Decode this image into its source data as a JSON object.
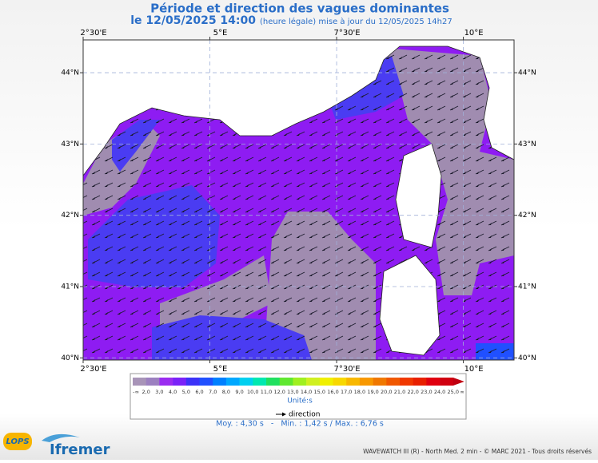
{
  "header": {
    "title": "Période et direction des vagues dominantes",
    "date": "le 12/05/2025 14:00",
    "update": "(heure légale) mise à jour du 12/05/2025 14h27"
  },
  "map": {
    "lon_range": [
      2.5,
      11.0
    ],
    "lat_range": [
      39.97,
      44.46
    ],
    "lon_ticks": [
      {
        "value": 2.5,
        "label": "2°30'E"
      },
      {
        "value": 5,
        "label": "5°E"
      },
      {
        "value": 7.5,
        "label": "7°30'E"
      },
      {
        "value": 10,
        "label": "10°E"
      }
    ],
    "lat_ticks": [
      {
        "value": 40,
        "label": "40°N"
      },
      {
        "value": 41,
        "label": "41°N"
      },
      {
        "value": 42,
        "label": "42°N"
      },
      {
        "value": 43,
        "label": "43°N"
      },
      {
        "value": 44,
        "label": "44°N"
      }
    ]
  },
  "legend": {
    "colors": [
      "#a894b8",
      "#9c80c0",
      "#9a2cf0",
      "#7a22f8",
      "#3c32f8",
      "#2050ff",
      "#0080ff",
      "#00a8ff",
      "#00d0f0",
      "#00e8b0",
      "#20e060",
      "#60e830",
      "#a0f020",
      "#d0f020",
      "#f0f000",
      "#f8d800",
      "#f8b800",
      "#f89800",
      "#f07800",
      "#f05800",
      "#f03800",
      "#e82000",
      "#e00010",
      "#d00010",
      "#c00010"
    ],
    "labels": [
      "-∞",
      "2,0",
      "3,0",
      "4,0",
      "5,0",
      "6,0",
      "7,0",
      "8,0",
      "9,0",
      "10,0",
      "11,0",
      "12,0",
      "13,0",
      "14,0",
      "15,0",
      "16,0",
      "17,0",
      "18,0",
      "19,0",
      "20,0",
      "21,0",
      "22,0",
      "23,0",
      "24,0",
      "25,0",
      "∞"
    ],
    "unit": "Unité:s",
    "direction": "direction"
  },
  "stats": "Moy. : 4,30 s   -   Min. : 1,42 s / Max. : 6,76 s",
  "footer": "WAVEWATCH III (R) - North Med. 2 min - © MARC 2021 - Tous droits réservés",
  "logos": [
    "LOPS",
    "Ifremer"
  ]
}
